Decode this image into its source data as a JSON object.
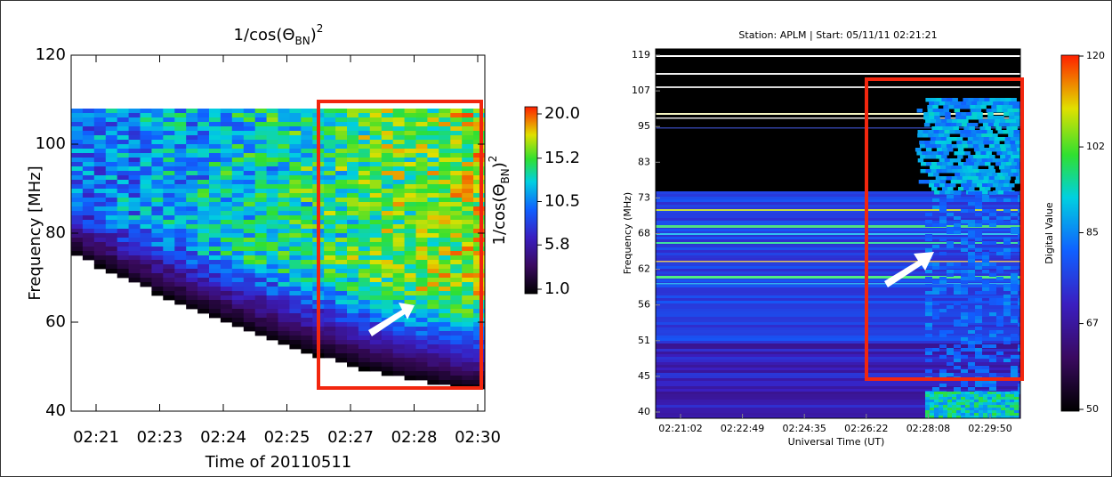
{
  "chart_data": [
    {
      "type": "heatmap",
      "title": [
        "1/cos(Θ",
        "BN",
        ")",
        "2"
      ],
      "x_label": "Time of 20110511",
      "y_label": "Frequency [MHz]",
      "categories": [
        "02:21",
        "02:23",
        "02:24",
        "02:25",
        "02:27",
        "02:28",
        "02:30"
      ],
      "ylim": [
        40,
        120
      ],
      "yticks": [
        40,
        60,
        80,
        100,
        120
      ],
      "colorbar": {
        "label": [
          "1/cos(Θ",
          "BN",
          ")",
          "2"
        ],
        "lim": [
          1,
          20
        ],
        "ticks": [
          {
            "value": 1,
            "label": "1.0"
          },
          5.8,
          10.5,
          15.2,
          {
            "value": 20,
            "label": "20.0"
          }
        ]
      }
    },
    {
      "type": "heatmap",
      "title": "Station: APLM | Start: 05/11/11 02:21:21",
      "x_label": "Universal Time (UT)",
      "y_label": "Frequency (MHz)",
      "categories": [
        "02:21:02",
        "02:22:49",
        "02:24:35",
        "02:26:22",
        "02:28:08",
        "02:29:50"
      ],
      "yticks": [
        40,
        45,
        51,
        56,
        62,
        68,
        73,
        83,
        95,
        107,
        119
      ],
      "colorbar": {
        "label": "Digital Value",
        "lim": [
          50,
          120
        ],
        "ticks": [
          50,
          67,
          85,
          102,
          120
        ]
      }
    }
  ]
}
